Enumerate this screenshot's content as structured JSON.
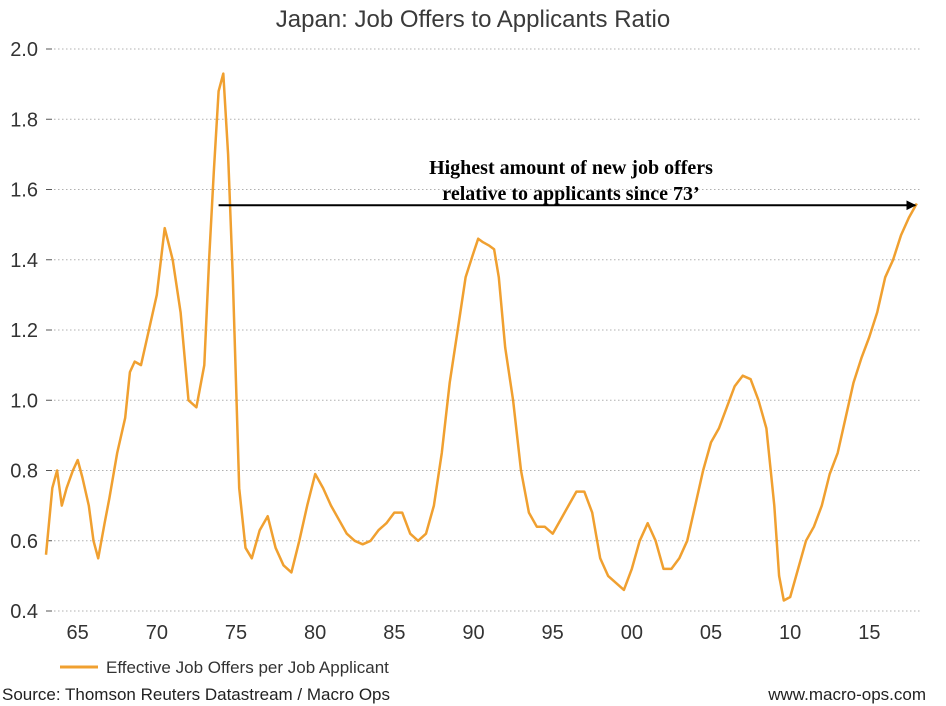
{
  "chart_data": {
    "type": "line",
    "title": "Japan: Job Offers to Applicants Ratio",
    "xlabel": "",
    "ylabel": "",
    "xlim": [
      1963,
      2018.2
    ],
    "ylim": [
      0.4,
      2.0
    ],
    "y_ticks": [
      0.4,
      0.6,
      0.8,
      1.0,
      1.2,
      1.4,
      1.6,
      1.8,
      2.0
    ],
    "y_tick_labels": [
      "0.4",
      "0.6",
      "0.8",
      "1.0",
      "1.2",
      "1.4",
      "1.6",
      "1.8",
      "2.0"
    ],
    "x_ticks": [
      1965,
      1970,
      1975,
      1980,
      1985,
      1990,
      1995,
      2000,
      2005,
      2010,
      2015
    ],
    "x_tick_labels": [
      "65",
      "70",
      "75",
      "80",
      "85",
      "90",
      "95",
      "00",
      "05",
      "10",
      "15"
    ],
    "grid": "horizontal dotted",
    "colors": {
      "series": "#f0a030",
      "grid": "#b0b0b0",
      "annotation": "#000000"
    },
    "series": [
      {
        "name": "Effective Job Offers per Job Applicant",
        "x": [
          1963.0,
          1963.4,
          1963.7,
          1964.0,
          1964.3,
          1964.7,
          1965.0,
          1965.3,
          1965.7,
          1966.0,
          1966.3,
          1966.7,
          1967.0,
          1967.5,
          1968.0,
          1968.3,
          1968.6,
          1969.0,
          1969.5,
          1970.0,
          1970.5,
          1971.0,
          1971.5,
          1972.0,
          1972.5,
          1973.0,
          1973.3,
          1973.6,
          1973.9,
          1974.2,
          1974.5,
          1974.8,
          1975.2,
          1975.6,
          1976.0,
          1976.5,
          1977.0,
          1977.5,
          1978.0,
          1978.5,
          1979.0,
          1979.5,
          1980.0,
          1980.5,
          1981.0,
          1981.5,
          1982.0,
          1982.5,
          1983.0,
          1983.5,
          1984.0,
          1984.5,
          1985.0,
          1985.5,
          1986.0,
          1986.5,
          1987.0,
          1987.5,
          1988.0,
          1988.5,
          1989.0,
          1989.5,
          1990.0,
          1990.3,
          1990.6,
          1991.0,
          1991.3,
          1991.6,
          1992.0,
          1992.5,
          1993.0,
          1993.5,
          1994.0,
          1994.5,
          1995.0,
          1995.5,
          1996.0,
          1996.5,
          1997.0,
          1997.5,
          1998.0,
          1998.5,
          1999.0,
          1999.5,
          2000.0,
          2000.5,
          2001.0,
          2001.5,
          2002.0,
          2002.5,
          2003.0,
          2003.5,
          2004.0,
          2004.5,
          2005.0,
          2005.5,
          2006.0,
          2006.5,
          2007.0,
          2007.5,
          2008.0,
          2008.5,
          2009.0,
          2009.3,
          2009.6,
          2010.0,
          2010.5,
          2011.0,
          2011.5,
          2012.0,
          2012.5,
          2013.0,
          2013.5,
          2014.0,
          2014.5,
          2015.0,
          2015.5,
          2016.0,
          2016.5,
          2017.0,
          2017.5,
          2018.0
        ],
        "y": [
          0.56,
          0.75,
          0.8,
          0.7,
          0.75,
          0.8,
          0.83,
          0.78,
          0.7,
          0.6,
          0.55,
          0.65,
          0.72,
          0.85,
          0.95,
          1.08,
          1.11,
          1.1,
          1.2,
          1.3,
          1.49,
          1.4,
          1.25,
          1.0,
          0.98,
          1.1,
          1.4,
          1.65,
          1.88,
          1.93,
          1.7,
          1.35,
          0.75,
          0.58,
          0.55,
          0.63,
          0.67,
          0.58,
          0.53,
          0.51,
          0.6,
          0.7,
          0.79,
          0.75,
          0.7,
          0.66,
          0.62,
          0.6,
          0.59,
          0.6,
          0.63,
          0.65,
          0.68,
          0.68,
          0.62,
          0.6,
          0.62,
          0.7,
          0.85,
          1.05,
          1.2,
          1.35,
          1.42,
          1.46,
          1.45,
          1.44,
          1.43,
          1.35,
          1.15,
          1.0,
          0.8,
          0.68,
          0.64,
          0.64,
          0.62,
          0.66,
          0.7,
          0.74,
          0.74,
          0.68,
          0.55,
          0.5,
          0.48,
          0.46,
          0.52,
          0.6,
          0.65,
          0.6,
          0.52,
          0.52,
          0.55,
          0.6,
          0.7,
          0.8,
          0.88,
          0.92,
          0.98,
          1.04,
          1.07,
          1.06,
          1.0,
          0.92,
          0.7,
          0.5,
          0.43,
          0.44,
          0.52,
          0.6,
          0.64,
          0.7,
          0.79,
          0.85,
          0.95,
          1.05,
          1.12,
          1.18,
          1.25,
          1.35,
          1.4,
          1.47,
          1.52,
          1.56
        ]
      }
    ],
    "annotation": {
      "lines": [
        "Highest amount of new job offers",
        "relative to applicants since 73’"
      ],
      "arrow_from_x": 1973.9,
      "arrow_to_x": 2017.9,
      "arrow_y": 1.555
    },
    "legend": {
      "label": "Effective Job Offers per Job Applicant",
      "position": "bottom-left"
    }
  },
  "footer": {
    "source": "Source: Thomson Reuters Datastream / Macro Ops",
    "website": "www.macro-ops.com"
  }
}
